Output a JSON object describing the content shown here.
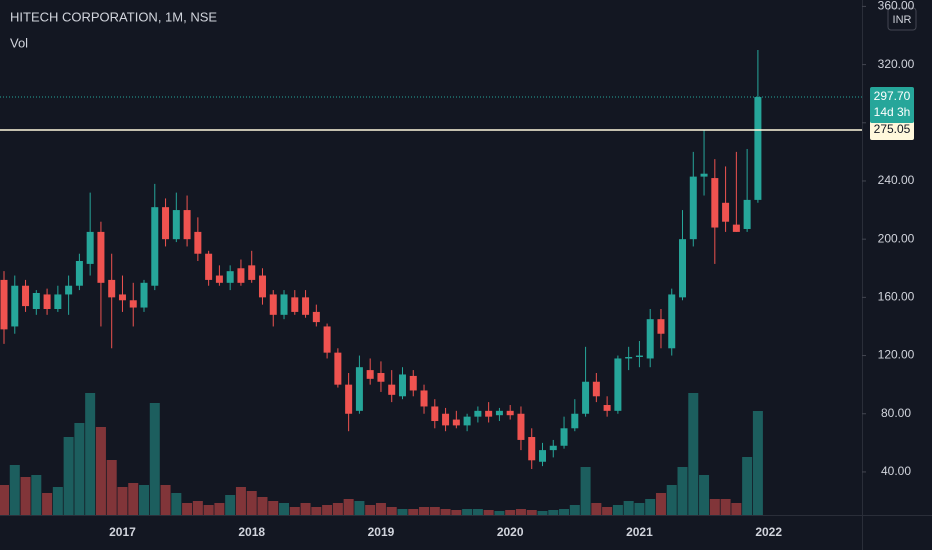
{
  "chart_data": {
    "type": "candlestick",
    "title": "HITECH CORPORATION, 1M, NSE",
    "volume_label": "Vol",
    "currency": "INR",
    "up_color": "#26a69a",
    "down_color": "#ef5350",
    "categories": [
      null,
      null,
      null,
      null,
      null,
      null,
      null,
      null,
      null,
      null,
      null,
      "2017",
      null,
      null,
      null,
      null,
      null,
      null,
      null,
      null,
      null,
      null,
      null,
      "2018",
      null,
      null,
      null,
      null,
      null,
      null,
      null,
      null,
      null,
      null,
      null,
      "2019",
      null,
      null,
      null,
      null,
      null,
      null,
      null,
      null,
      null,
      null,
      null,
      "2020",
      null,
      null,
      null,
      null,
      null,
      null,
      null,
      null,
      null,
      null,
      null,
      "2021",
      null,
      null,
      null,
      null,
      null,
      null,
      null,
      null,
      null,
      null,
      null,
      "2022"
    ],
    "open": [
      172,
      140,
      168,
      152,
      162,
      152,
      162,
      168,
      183,
      205,
      172,
      162,
      158,
      153,
      168,
      222,
      200,
      220,
      205,
      190,
      175,
      170,
      180,
      182,
      175,
      162,
      148,
      160,
      160,
      150,
      140,
      122,
      100,
      82,
      110,
      108,
      100,
      92,
      106,
      96,
      85,
      80,
      76,
      72,
      78,
      82,
      79,
      82,
      80,
      64,
      47,
      55,
      58,
      70,
      80,
      102,
      86,
      82,
      118,
      119,
      118,
      145,
      125,
      160,
      200,
      243,
      242,
      225,
      210,
      207,
      227,
      null
    ],
    "high": [
      178,
      175,
      172,
      165,
      166,
      168,
      175,
      190,
      232,
      212,
      190,
      175,
      170,
      172,
      238,
      228,
      232,
      230,
      215,
      192,
      182,
      182,
      186,
      192,
      180,
      165,
      165,
      165,
      165,
      155,
      142,
      125,
      108,
      120,
      118,
      116,
      110,
      112,
      110,
      100,
      90,
      84,
      82,
      80,
      85,
      88,
      84,
      86,
      85,
      70,
      60,
      62,
      78,
      90,
      126,
      108,
      92,
      120,
      126,
      130,
      152,
      152,
      166,
      220,
      260,
      275,
      255,
      250,
      260,
      262,
      330,
      null
    ],
    "low": [
      128,
      135,
      150,
      148,
      148,
      150,
      148,
      165,
      175,
      140,
      125,
      150,
      140,
      150,
      165,
      195,
      198,
      195,
      185,
      168,
      168,
      165,
      168,
      170,
      155,
      140,
      145,
      148,
      146,
      140,
      118,
      98,
      68,
      80,
      100,
      95,
      88,
      90,
      92,
      80,
      70,
      68,
      70,
      68,
      74,
      74,
      75,
      76,
      55,
      42,
      44,
      50,
      56,
      68,
      78,
      88,
      78,
      80,
      110,
      112,
      112,
      125,
      120,
      158,
      195,
      230,
      183,
      205,
      205,
      205,
      225,
      null
    ],
    "close": [
      138,
      168,
      154,
      163,
      152,
      162,
      168,
      185,
      205,
      170,
      160,
      158,
      153,
      170,
      222,
      200,
      220,
      200,
      190,
      172,
      170,
      178,
      170,
      172,
      160,
      148,
      162,
      150,
      148,
      143,
      122,
      100,
      80,
      112,
      104,
      102,
      93,
      107,
      96,
      85,
      75,
      72,
      72,
      78,
      82,
      78,
      82,
      79,
      62,
      48,
      55,
      58,
      70,
      80,
      102,
      92,
      82,
      118,
      119,
      120,
      145,
      135,
      162,
      200,
      243,
      245,
      208,
      212,
      205,
      227,
      297.7,
      null
    ],
    "volume": [
      30,
      50,
      38,
      40,
      22,
      28,
      78,
      92,
      122,
      88,
      55,
      28,
      32,
      30,
      112,
      30,
      22,
      12,
      14,
      10,
      12,
      20,
      28,
      24,
      18,
      14,
      12,
      8,
      12,
      8,
      10,
      12,
      16,
      14,
      10,
      12,
      8,
      6,
      6,
      8,
      8,
      6,
      5,
      6,
      6,
      5,
      4,
      5,
      6,
      5,
      4,
      5,
      6,
      10,
      48,
      12,
      8,
      10,
      14,
      12,
      16,
      22,
      30,
      48,
      122,
      40,
      16,
      16,
      12,
      58,
      104,
      null
    ],
    "volume_lim": [
      0,
      515
    ],
    "ylim": [
      10.4,
      364.4
    ],
    "yticks": [
      {
        "value": 40,
        "label": "40.00"
      },
      {
        "value": 80,
        "label": "80.00"
      },
      {
        "value": 120,
        "label": "120.00"
      },
      {
        "value": 160,
        "label": "160.00"
      },
      {
        "value": 200,
        "label": "200.00"
      },
      {
        "value": 240,
        "label": "240.00"
      },
      {
        "value": 280,
        "label": "280.00"
      },
      {
        "value": 320,
        "label": "320.00"
      },
      {
        "value": 360,
        "label": "360.00"
      }
    ],
    "last_price": {
      "value": 297.7,
      "label": "297.70"
    },
    "countdown": "14d 3h",
    "horizontal_line": {
      "value": 275.05,
      "label": "275.05"
    }
  }
}
